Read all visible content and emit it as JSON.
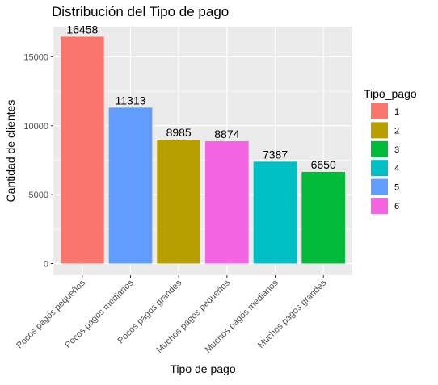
{
  "chart_data": {
    "type": "bar",
    "title": "Distribución del Tipo de pago",
    "xlabel": "Tipo de pago",
    "ylabel": "Cantidad de clientes",
    "ylim": [
      0,
      16458
    ],
    "yticks": [
      0,
      5000,
      10000,
      15000
    ],
    "grid": true,
    "legend_position": "right",
    "categories": [
      "Pocos pagos pequeños",
      "Pocos pagos medianos",
      "Pocos pagos grandes",
      "Muchos pagos pequeños",
      "Muchos pagos medianos",
      "Muchos pagos grandes"
    ],
    "values": [
      16458,
      11313,
      8985,
      8874,
      7387,
      6650
    ],
    "bar_tipo": [
      "1",
      "5",
      "2",
      "6",
      "4",
      "3"
    ],
    "legend": {
      "title": "Tipo_pago",
      "entries": [
        {
          "label": "1",
          "color": "#F8766D"
        },
        {
          "label": "2",
          "color": "#B79F00"
        },
        {
          "label": "3",
          "color": "#00BA38"
        },
        {
          "label": "4",
          "color": "#00BFC4"
        },
        {
          "label": "5",
          "color": "#619CFF"
        },
        {
          "label": "6",
          "color": "#F564E3"
        }
      ]
    },
    "panel_background": "#EBEBEB",
    "grid_color": "#FFFFFF"
  }
}
